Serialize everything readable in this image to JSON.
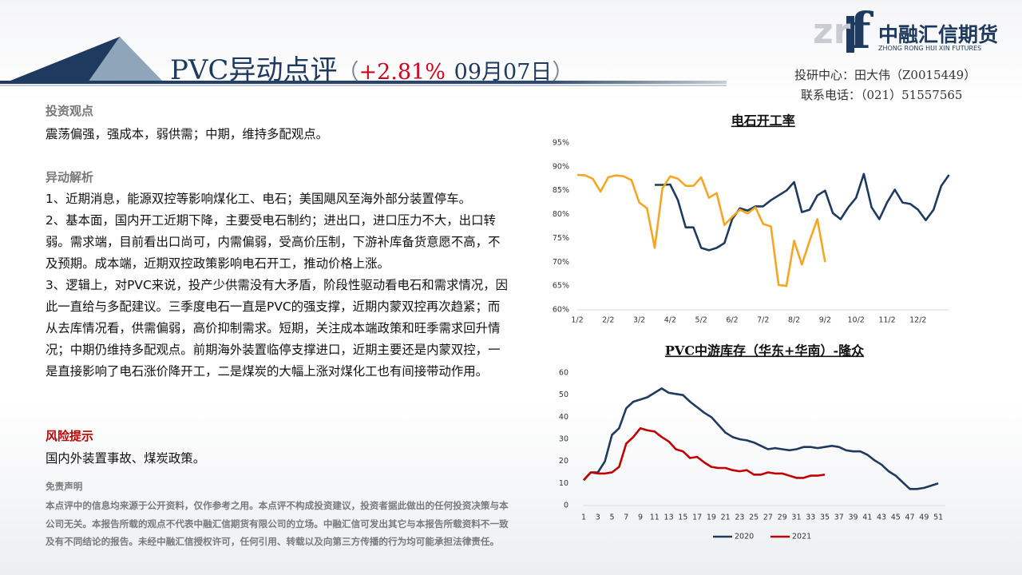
{
  "header": {
    "title": "PVC异动点评",
    "bracket_open": "（",
    "change": "+2.81%",
    "date": "09月07日",
    "bracket_close": "）",
    "logo_letters": "zr",
    "logo_f": "f",
    "brand": "中融汇信期货",
    "brand_en": "ZHONG RONG HUI XIN FUTURES",
    "contact_1": "投研中心：田大伟（Z0015449）",
    "contact_2": "联系电话：（021）51557565"
  },
  "sections": [
    {
      "heading": "投资观点",
      "paragraphs": [
        "震荡偏强，强成本，弱供需；中期，维持多配观点。"
      ]
    },
    {
      "heading": "异动解析",
      "paragraphs": [
        "1、近期消息，能源双控等影响煤化工、电石；美国飓风至海外部分装置停车。",
        "2、基本面，国内开工近期下降，主要受电石制约；进出口，进口压力不大，出口转弱。需求端，目前看出口尚可，内需偏弱，受高价压制，下游补库备货意愿不高，不及预期。成本端，近期双控政策影响电石开工，推动价格上涨。",
        "3、逻辑上，对PVC来说，投产少供需没有大矛盾，阶段性驱动看电石和需求情况，因此一直给与多配建议。三季度电石一直是PVC的强支撑，近期内蒙双控再次趋紧；而从去库情况看，供需偏弱，高价抑制需求。短期，关注成本端政策和旺季需求回升情况；中期仍维持多配观点。前期海外装置临停支撑进口，近期主要还是内蒙双控，一是直接影响了电石涨价降开工，二是煤炭的大幅上涨对煤化工也有间接带动作用。"
      ]
    },
    {
      "heading": "风险提示",
      "paragraphs": [
        "国内外装置事故、煤炭政策。"
      ]
    }
  ],
  "disclaimer": {
    "heading": "免责声明",
    "text": "本点评中的信息均来源于公开资料，仅作参考之用。本点评不构成投资建议，投资者据此做出的任何投资决策与本公司无关。本报告所载的观点不代表中融汇信期货有限公司的立场。中融汇信可发出其它与本报告所载资料不一致及有不同结论的报告。未经中融汇信授权许可，任何引用、转载以及向第三方传播的行为均可能承担法律责任。"
  },
  "chart_data": [
    {
      "type": "line",
      "title": "电石开工率",
      "categories": [
        "1/2",
        null,
        null,
        null,
        "2/2",
        null,
        null,
        null,
        "3/2",
        null,
        null,
        null,
        "4/2",
        null,
        null,
        null,
        "5/2",
        null,
        null,
        null,
        "6/2",
        null,
        null,
        null,
        "7/2",
        null,
        null,
        null,
        "8/2",
        null,
        null,
        null,
        "9/2",
        null,
        null,
        null,
        "10/2",
        null,
        null,
        null,
        "11/2",
        null,
        null,
        null,
        "12/2",
        null,
        null,
        null,
        null
      ],
      "series": [
        {
          "color": "#1f3a5f",
          "values": [
            null,
            null,
            null,
            null,
            null,
            null,
            null,
            null,
            null,
            null,
            86.2,
            86.2,
            86.3,
            83,
            77.3,
            77.3,
            73,
            72.5,
            73,
            74,
            79,
            81.3,
            80.8,
            81.7,
            81.7,
            83,
            84,
            85,
            86.8,
            80.5,
            81,
            84,
            85,
            80.3,
            79,
            81.5,
            83.5,
            88.5,
            81.5,
            79,
            82.5,
            85.2,
            82.5,
            82.2,
            81,
            78.8,
            81,
            86,
            88.3
          ]
        },
        {
          "color": "#f5a623",
          "values": [
            88.3,
            88.2,
            87.5,
            84.8,
            87.8,
            88.2,
            88,
            87.2,
            82.5,
            81.3,
            73,
            85.5,
            88,
            87.5,
            86,
            86,
            87.8,
            83.5,
            84.5,
            77.8,
            79.5,
            81,
            80.2,
            81.5,
            78,
            77.5,
            65.2,
            65,
            74.5,
            69.5,
            74.5,
            79,
            70,
            null,
            null,
            null,
            null,
            null,
            null,
            null,
            null,
            null,
            null,
            null,
            null,
            null,
            null,
            null,
            null
          ]
        }
      ],
      "ylim": [
        60,
        95
      ],
      "yticks": [
        {
          "value": 60,
          "label": "60%"
        },
        {
          "value": 65,
          "label": "65%"
        },
        {
          "value": 70,
          "label": "70%"
        },
        {
          "value": 75,
          "label": "75%"
        },
        {
          "value": 80,
          "label": "80%"
        },
        {
          "value": 85,
          "label": "85%"
        },
        {
          "value": 90,
          "label": "90%"
        },
        {
          "value": 95,
          "label": "95%"
        }
      ]
    },
    {
      "type": "line",
      "title": "PVC中游库存（华东+华南）-隆众",
      "x": [
        1,
        2,
        3,
        4,
        5,
        6,
        7,
        8,
        9,
        10,
        11,
        12,
        13,
        14,
        15,
        16,
        17,
        18,
        19,
        20,
        21,
        22,
        23,
        24,
        25,
        26,
        27,
        28,
        29,
        30,
        31,
        32,
        33,
        34,
        35,
        36,
        37,
        38,
        39,
        40,
        41,
        42,
        43,
        44,
        45,
        46,
        47,
        48,
        49,
        50,
        51
      ],
      "xlim": [
        1,
        52
      ],
      "xticks": [
        1,
        3,
        5,
        7,
        9,
        11,
        13,
        15,
        17,
        19,
        21,
        23,
        25,
        27,
        29,
        31,
        33,
        35,
        37,
        39,
        41,
        43,
        45,
        47,
        49,
        51
      ],
      "series": [
        {
          "name": "2020",
          "color": "#1f3a5f",
          "values": [
            11.5,
            15,
            15,
            20,
            32,
            35,
            44,
            47,
            48,
            49,
            51,
            53,
            51,
            50.5,
            50,
            47,
            44.5,
            42,
            40,
            36.5,
            33,
            31,
            30,
            29.5,
            28.5,
            27,
            25.5,
            26,
            25.5,
            25,
            25.5,
            26.5,
            26.5,
            26,
            26.5,
            27,
            26.5,
            25,
            24.5,
            24.5,
            23,
            20.5,
            18.5,
            15.5,
            13.5,
            10.5,
            7.5,
            7.5,
            8,
            9,
            10
          ]
        },
        {
          "name": "2021",
          "color": "#c00000",
          "values": [
            11.5,
            15,
            14.5,
            14.5,
            15,
            17.5,
            28,
            31,
            35,
            34,
            33.5,
            31,
            29,
            25.5,
            24.5,
            21.5,
            22,
            19.5,
            17.5,
            17,
            17,
            16,
            15.5,
            16,
            14,
            14,
            15,
            14.5,
            14.5,
            13.5,
            12.5,
            12.5,
            13.5,
            13.5,
            14,
            null,
            null,
            null,
            null,
            null,
            null,
            null,
            null,
            null,
            null,
            null,
            null,
            null,
            null,
            null,
            null
          ]
        }
      ],
      "ylim": [
        0,
        60
      ],
      "yticks": [
        0,
        10,
        20,
        30,
        40,
        50,
        60
      ],
      "legend": "bottom"
    }
  ]
}
